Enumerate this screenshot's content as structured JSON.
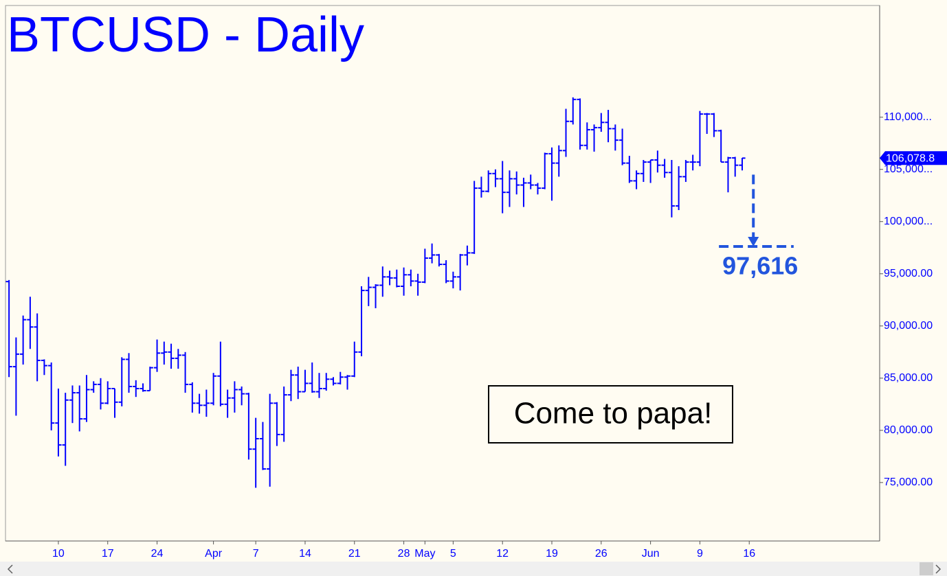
{
  "chart_data": {
    "type": "ohlc",
    "title": "BTCUSD - Daily",
    "color": "#0000ff",
    "categories": [
      null,
      null,
      null,
      null,
      null,
      null,
      null,
      "10",
      null,
      null,
      null,
      null,
      null,
      null,
      "17",
      null,
      null,
      null,
      null,
      null,
      null,
      "24",
      null,
      null,
      null,
      null,
      null,
      null,
      null,
      "Apr",
      null,
      null,
      null,
      null,
      null,
      "7",
      null,
      null,
      null,
      null,
      null,
      null,
      "14",
      null,
      null,
      null,
      null,
      null,
      null,
      "21",
      null,
      null,
      null,
      null,
      null,
      null,
      "28",
      null,
      null,
      "May",
      null,
      null,
      null,
      "5",
      null,
      null,
      null,
      null,
      null,
      null,
      "12",
      null,
      null,
      null,
      null,
      null,
      null,
      "19",
      null,
      null,
      null,
      null,
      null,
      null,
      "26",
      null,
      null,
      null,
      null,
      null,
      null,
      "Jun",
      null,
      null,
      null,
      null,
      null,
      null,
      "9",
      null,
      null,
      null,
      null,
      null,
      null,
      "16",
      null,
      null,
      null,
      null,
      null,
      null,
      null,
      null,
      null,
      null,
      null,
      null,
      null,
      null,
      null,
      null,
      null,
      null
    ],
    "open": [
      94250,
      86100,
      87300,
      90600,
      89900,
      86700,
      86200,
      80700,
      78600,
      82900,
      83600,
      81100,
      83900,
      84400,
      82600,
      84000,
      82700,
      86800,
      84200,
      84000,
      83800,
      86000,
      87400,
      87500,
      86900,
      87200,
      84400,
      82600,
      82400,
      82600,
      85200,
      82500,
      83100,
      83900,
      83500,
      78200,
      79200,
      76300,
      82600,
      79600,
      83400,
      85300,
      83700,
      84500,
      83700,
      84000,
      84900,
      84500,
      85100,
      85200,
      87500,
      93400,
      93700,
      93900,
      94700,
      94600,
      93800,
      94900,
      94300,
      94200,
      96500,
      96800,
      95900,
      94300,
      94700,
      96800,
      97000,
      103200,
      102900,
      104600,
      104100,
      102800,
      104100,
      103500,
      103700,
      103500,
      103200,
      106500,
      105600,
      106800,
      109600,
      111700,
      107300,
      108800,
      109000,
      109500,
      108900,
      107800,
      105600,
      103900,
      104600,
      105700,
      105900,
      105400,
      104700,
      101500,
      104300,
      105700,
      105700,
      110300,
      110300,
      108700,
      105700,
      106100,
      105400,
      null,
      null,
      null,
      null,
      null,
      null,
      null,
      null,
      null,
      null,
      null,
      null,
      null,
      null,
      null,
      null,
      null,
      null,
      null
    ],
    "high": [
      94400,
      88900,
      91000,
      92800,
      91200,
      86800,
      86500,
      84000,
      83600,
      84300,
      84300,
      85300,
      84700,
      85000,
      84700,
      84000,
      87000,
      87400,
      84800,
      84500,
      86100,
      88700,
      88500,
      88300,
      87800,
      87500,
      84600,
      83500,
      83900,
      85500,
      88500,
      83900,
      84700,
      84200,
      83600,
      81200,
      80800,
      83500,
      82700,
      84200,
      85800,
      86100,
      85800,
      86500,
      85500,
      85500,
      85100,
      85600,
      85300,
      88500,
      93800,
      94700,
      94000,
      95700,
      95300,
      95400,
      95600,
      95400,
      95000,
      97400,
      97900,
      96900,
      96300,
      95200,
      96900,
      97700,
      103900,
      104300,
      104900,
      105000,
      105800,
      104900,
      104800,
      104200,
      104500,
      103700,
      106600,
      107100,
      107300,
      110800,
      111900,
      111800,
      109500,
      109300,
      110400,
      110700,
      109300,
      108900,
      106300,
      104900,
      105900,
      105900,
      106800,
      106000,
      105900,
      105300,
      105900,
      106400,
      110600,
      110400,
      110400,
      108800,
      106200,
      106200,
      106100,
      null,
      null,
      null,
      null,
      null,
      null,
      null,
      null,
      null,
      null,
      null,
      null,
      null,
      null,
      null,
      null,
      null,
      null,
      null
    ],
    "low": [
      85100,
      81400,
      86300,
      87800,
      84700,
      85300,
      80000,
      77500,
      76600,
      80700,
      79900,
      80800,
      83600,
      82000,
      82500,
      81200,
      82300,
      83600,
      83200,
      83700,
      83800,
      85600,
      86300,
      85900,
      85900,
      83600,
      81700,
      81600,
      81300,
      82400,
      82300,
      81200,
      81700,
      82400,
      77200,
      74500,
      76200,
      74600,
      78500,
      78900,
      82800,
      83000,
      83700,
      83600,
      83100,
      83800,
      84300,
      84400,
      83900,
      85100,
      87100,
      91900,
      91700,
      92800,
      93900,
      93700,
      92900,
      93800,
      92900,
      94100,
      96000,
      95700,
      94100,
      93600,
      93400,
      95800,
      96900,
      102300,
      102800,
      103300,
      100800,
      101400,
      102600,
      101400,
      103100,
      102600,
      103100,
      102000,
      104300,
      106200,
      109300,
      106900,
      106900,
      106700,
      108600,
      107600,
      106800,
      105400,
      103700,
      103100,
      103800,
      103700,
      104700,
      104200,
      100400,
      101100,
      103800,
      104900,
      105300,
      108400,
      108100,
      105700,
      102800,
      104300,
      104900,
      null,
      null,
      null,
      null,
      null,
      null,
      null,
      null,
      null,
      null,
      null,
      null,
      null,
      null,
      null,
      null,
      null,
      null,
      null
    ],
    "close": [
      86100,
      87300,
      90600,
      89900,
      86700,
      86200,
      80700,
      78600,
      82900,
      83600,
      81100,
      83900,
      84400,
      82600,
      84000,
      82700,
      86800,
      84200,
      84000,
      83800,
      86000,
      87400,
      87500,
      86900,
      87200,
      84400,
      82600,
      82400,
      82600,
      85200,
      82500,
      83100,
      83900,
      83500,
      78200,
      79200,
      76300,
      82600,
      79600,
      83400,
      85300,
      83700,
      84500,
      83700,
      84000,
      84900,
      84500,
      85100,
      85200,
      87500,
      93400,
      93700,
      93900,
      94700,
      94600,
      93800,
      94900,
      94300,
      94200,
      96500,
      96800,
      95900,
      94300,
      94700,
      96800,
      97000,
      103200,
      102900,
      104600,
      104100,
      102800,
      104100,
      103500,
      103700,
      103500,
      103200,
      106500,
      105600,
      106800,
      109600,
      111700,
      107300,
      108800,
      109000,
      109500,
      108900,
      107800,
      105600,
      103900,
      104600,
      105700,
      105900,
      105400,
      104700,
      101500,
      104300,
      105700,
      105700,
      110300,
      110300,
      108700,
      105700,
      106100,
      105400,
      106078.8,
      null,
      null,
      null,
      null,
      null,
      null,
      null,
      null,
      null,
      null,
      null,
      null,
      null,
      null,
      null,
      null,
      null,
      null,
      null
    ],
    "ylim": [
      69400,
      120700
    ],
    "yticks": [
      {
        "value": 75000,
        "label": "75,000.00"
      },
      {
        "value": 80000,
        "label": "80,000.00"
      },
      {
        "value": 85000,
        "label": "85,000.00"
      },
      {
        "value": 90000,
        "label": "90,000.00"
      },
      {
        "value": 95000,
        "label": "95,000.00"
      },
      {
        "value": 100000,
        "label": "100,000..."
      },
      {
        "value": 105000,
        "label": "105,000..."
      },
      {
        "value": 110000,
        "label": "110,000..."
      }
    ],
    "last_price": {
      "value": 106078.8,
      "label": "106,078.8"
    },
    "target": {
      "value": 97616,
      "label": "97,616",
      "from": 104500,
      "color": "#2255dd"
    },
    "annotation": "Come to papa!"
  }
}
